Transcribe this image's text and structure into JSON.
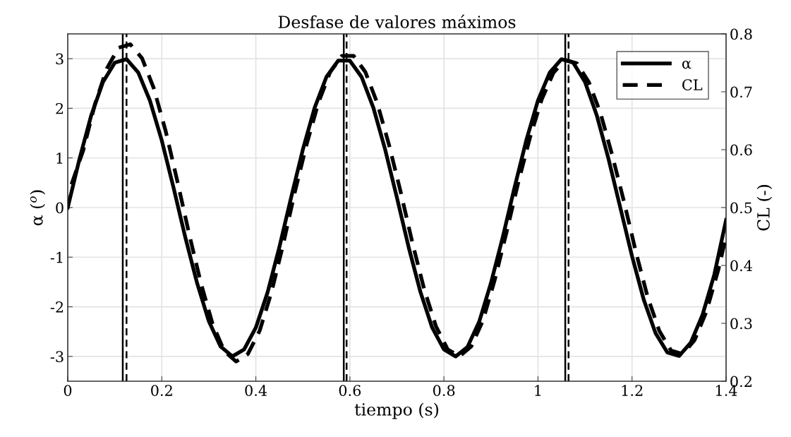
{
  "chart_data": {
    "type": "line",
    "title": "Desfase de valores máximos",
    "xlabel": "tiempo (s)",
    "ylabel": "α ($^{o}$)",
    "y2label": "CL (-)",
    "series": [
      {
        "name": "α",
        "color": "#000000",
        "line_style": "solid",
        "x": [
          0,
          0.025,
          0.05,
          0.075,
          0.1,
          0.125,
          0.15,
          0.175,
          0.2,
          0.225,
          0.25,
          0.275,
          0.3,
          0.325,
          0.35,
          0.375,
          0.4,
          0.425,
          0.45,
          0.475,
          0.5,
          0.525,
          0.55,
          0.575,
          0.6,
          0.625,
          0.65,
          0.675,
          0.7,
          0.725,
          0.75,
          0.775,
          0.8,
          0.825,
          0.85,
          0.875,
          0.9,
          0.925,
          0.95,
          0.975,
          1.0,
          1.025,
          1.05,
          1.075,
          1.1,
          1.125,
          1.15,
          1.175,
          1.2,
          1.225,
          1.25,
          1.275,
          1.3,
          1.325,
          1.35,
          1.375,
          1.4
        ],
        "values": [
          0,
          0.98,
          1.86,
          2.53,
          2.92,
          2.99,
          2.72,
          2.15,
          1.35,
          0.4,
          -0.6,
          -1.52,
          -2.29,
          -2.8,
          -3.0,
          -2.86,
          -2.42,
          -1.71,
          -0.8,
          0.2,
          1.17,
          2.01,
          2.63,
          2.96,
          2.96,
          2.63,
          2.01,
          1.17,
          0.2,
          -0.8,
          -1.7,
          -2.42,
          -2.86,
          -3.0,
          -2.81,
          -2.3,
          -1.52,
          -0.6,
          0.4,
          1.35,
          2.16,
          2.72,
          2.99,
          2.92,
          2.53,
          1.86,
          0.98,
          0,
          -0.98,
          -1.86,
          -2.53,
          -2.92,
          -2.99,
          -2.72,
          -2.16,
          -1.35,
          -0.25
        ]
      },
      {
        "name": "CL",
        "color": "#000000",
        "line_style": "dashed",
        "axis": "y2",
        "x": [
          0.008,
          0.033,
          0.058,
          0.083,
          0.108,
          0.133,
          0.158,
          0.183,
          0.208,
          0.233,
          0.258,
          0.283,
          0.308,
          0.333,
          0.358,
          0.383,
          0.408,
          0.433,
          0.458,
          0.483,
          0.508,
          0.533,
          0.558,
          0.583,
          0.608,
          0.633,
          0.658,
          0.683,
          0.708,
          0.733,
          0.758,
          0.783,
          0.808,
          0.833,
          0.858,
          0.883,
          0.908,
          0.933,
          0.958,
          0.983,
          1.008,
          1.033,
          1.058,
          1.083,
          1.108,
          1.133,
          1.158,
          1.183,
          1.208,
          1.233,
          1.258,
          1.283,
          1.308,
          1.333,
          1.358,
          1.383,
          1.4
        ],
        "values": [
          0.54,
          0.599,
          0.679,
          0.74,
          0.776,
          0.782,
          0.758,
          0.706,
          0.633,
          0.546,
          0.455,
          0.37,
          0.299,
          0.252,
          0.234,
          0.247,
          0.287,
          0.353,
          0.436,
          0.527,
          0.609,
          0.681,
          0.734,
          0.762,
          0.762,
          0.734,
          0.681,
          0.609,
          0.527,
          0.439,
          0.359,
          0.295,
          0.255,
          0.243,
          0.26,
          0.305,
          0.375,
          0.457,
          0.543,
          0.621,
          0.687,
          0.733,
          0.755,
          0.749,
          0.717,
          0.663,
          0.59,
          0.51,
          0.424,
          0.346,
          0.287,
          0.253,
          0.247,
          0.271,
          0.32,
          0.391,
          0.45
        ]
      }
    ],
    "ref_lines": [
      {
        "axis": "x",
        "value": 0.117,
        "color": "#000000",
        "line_style": "solid"
      },
      {
        "axis": "x",
        "value": 0.587,
        "color": "#000000",
        "line_style": "solid"
      },
      {
        "axis": "x",
        "value": 1.058,
        "color": "#000000",
        "line_style": "solid"
      },
      {
        "axis": "x",
        "value": 0.125,
        "color": "#000000",
        "line_style": "dashed"
      },
      {
        "axis": "x",
        "value": 0.593,
        "color": "#000000",
        "line_style": "dashed"
      },
      {
        "axis": "x",
        "value": 1.065,
        "color": "#000000",
        "line_style": "dashed"
      }
    ],
    "xlim": [
      0,
      1.4
    ],
    "xticks": [
      0,
      0.2,
      0.4,
      0.6,
      0.8,
      1,
      1.2,
      1.4
    ],
    "ylim": [
      -3.5,
      3.5
    ],
    "yticks": [
      -3,
      -2,
      -1,
      0,
      1,
      2,
      3
    ],
    "y2lim": [
      0.2,
      0.8
    ],
    "y2ticks": [
      0.2,
      0.3,
      0.4,
      0.5,
      0.6,
      0.7,
      0.8
    ],
    "grid": true,
    "legend": "top right",
    "marker": "none"
  }
}
